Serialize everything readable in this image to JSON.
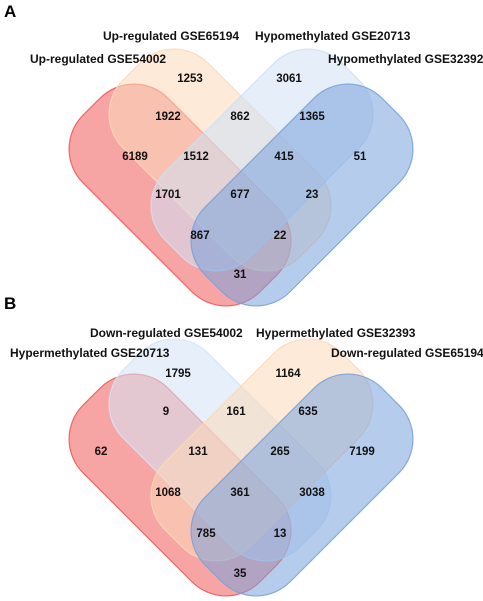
{
  "panels": [
    {
      "letter": "A",
      "sets": [
        {
          "label": "Up-regulated GSE54002",
          "color": "#f05a5a"
        },
        {
          "label": "Up-regulated GSE65194",
          "color": "#fbd9b9"
        },
        {
          "label": "Hypomethylated GSE20713",
          "color": "#cfe0f4"
        },
        {
          "label": "Hypomethylated GSE32392",
          "color": "#7aa2dd"
        }
      ],
      "regions": {
        "1": "6189",
        "2": "1253",
        "3": "3061",
        "4": "51",
        "12": "1922",
        "23": "862",
        "34": "1365",
        "123": "1512",
        "234": "415",
        "13": "1701",
        "1234": "677",
        "24": "23",
        "134": "867",
        "124": "22",
        "14": "31"
      }
    },
    {
      "letter": "B",
      "sets": [
        {
          "label": "Hypermethylated GSE20713",
          "color": "#f05a5a"
        },
        {
          "label": "Down-regulated GSE54002",
          "color": "#d4e3f6"
        },
        {
          "label": "Hypermethylated GSE32393",
          "color": "#fbd9b9"
        },
        {
          "label": "Down-regulated GSE65194",
          "color": "#7aa2dd"
        }
      ],
      "regions": {
        "1": "62",
        "2": "1795",
        "3": "1164",
        "4": "7199",
        "12": "9",
        "23": "161",
        "34": "635",
        "123": "131",
        "234": "265",
        "13": "1068",
        "1234": "361",
        "24": "3038",
        "134": "785",
        "124": "13",
        "14": "35"
      }
    }
  ]
}
